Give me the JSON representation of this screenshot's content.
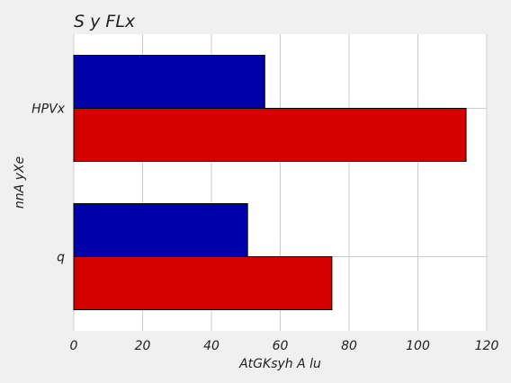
{
  "chart_data": {
    "type": "bar",
    "orientation": "horizontal",
    "title": "S y  FLx",
    "xlabel": "AtGKsyh A lu",
    "ylabel": "nnA yXe",
    "categories": [
      "HPVx",
      "q"
    ],
    "series": [
      {
        "color": "#0000aa",
        "values": [
          55.5,
          50.5
        ]
      },
      {
        "color": "#d40000",
        "values": [
          114,
          75
        ]
      }
    ],
    "xlim": [
      0,
      120
    ],
    "xticks": [
      0,
      20,
      40,
      60,
      80,
      100,
      120
    ],
    "grid": true,
    "legend": "none"
  },
  "colors": {
    "background": "#f0f0f0",
    "plot_background": "#ffffff",
    "grid": "#cccccc"
  }
}
